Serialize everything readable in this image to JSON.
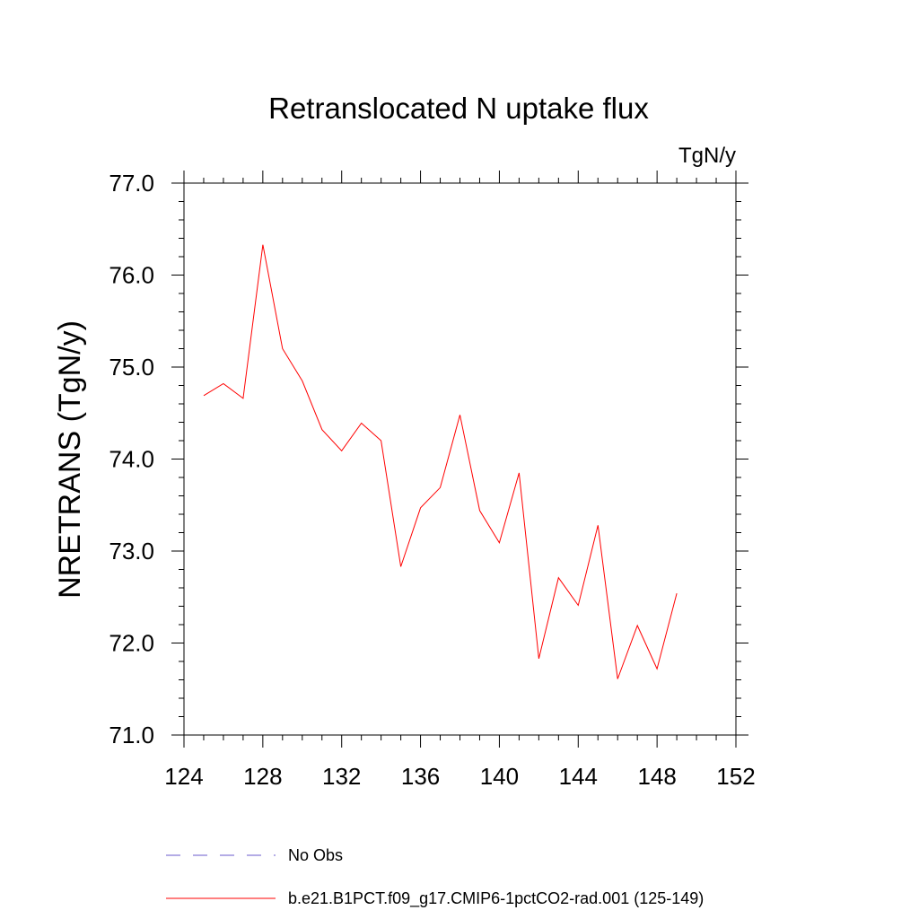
{
  "chart_data": {
    "type": "line",
    "title": "Retranslocated N uptake flux",
    "units": "TgN/y",
    "xlabel": "",
    "ylabel": "NRETRANS  (TgN/y)",
    "xlim": [
      124,
      152
    ],
    "ylim": [
      71.0,
      77.0
    ],
    "x_ticks": [
      124,
      128,
      132,
      136,
      140,
      144,
      148,
      152
    ],
    "y_ticks": [
      "71.0",
      "72.0",
      "73.0",
      "74.0",
      "75.0",
      "76.0",
      "77.0"
    ],
    "grid": false,
    "series": [
      {
        "name": "b.e21.B1PCT.f09_g17.CMIP6-1pctCO2-rad.001 (125-149)",
        "color": "#ff0000",
        "x": [
          125,
          126,
          127,
          128,
          129,
          130,
          131,
          132,
          133,
          134,
          135,
          136,
          137,
          138,
          139,
          140,
          141,
          142,
          143,
          144,
          145,
          146,
          147,
          148,
          149
        ],
        "values": [
          74.69,
          74.82,
          74.66,
          76.33,
          75.2,
          74.85,
          74.32,
          74.09,
          74.39,
          74.2,
          72.83,
          73.47,
          73.69,
          74.48,
          73.44,
          73.09,
          73.85,
          71.83,
          72.71,
          72.41,
          73.28,
          71.61,
          72.19,
          71.72,
          72.54
        ]
      }
    ],
    "legend": {
      "placement": "bottom",
      "entries": [
        {
          "label": "No Obs",
          "color": "#6a5acd",
          "style": "dashed"
        },
        {
          "label": "b.e21.B1PCT.f09_g17.CMIP6-1pctCO2-rad.001 (125-149)",
          "color": "#ff0000",
          "style": "solid"
        }
      ]
    }
  }
}
